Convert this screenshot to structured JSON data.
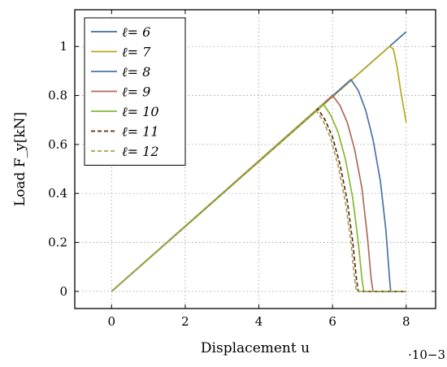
{
  "chart_data": {
    "type": "line",
    "title": "",
    "xlabel": "Displacement u",
    "ylabel": "Load F_y[kN]",
    "xlim": [
      -1,
      8.8
    ],
    "ylim": [
      -0.07,
      1.15
    ],
    "x_ticks": [
      0,
      2,
      4,
      6,
      8
    ],
    "y_ticks": [
      0,
      0.2,
      0.4,
      0.6,
      0.8,
      1
    ],
    "x_multiplier": "·10−3",
    "grid": true,
    "legend_position": "top-left",
    "series": [
      {
        "name": "ℓ= 6",
        "color": "#3b6e9a",
        "dash": "solid",
        "points": [
          [
            0,
            0
          ],
          [
            8,
            1.06
          ]
        ]
      },
      {
        "name": "ℓ= 7",
        "color": "#b9a81e",
        "dash": "solid",
        "points": [
          [
            0,
            0
          ],
          [
            7.55,
            1.0
          ],
          [
            7.65,
            0.99
          ],
          [
            7.75,
            0.92
          ],
          [
            7.85,
            0.82
          ],
          [
            8,
            0.69
          ]
        ]
      },
      {
        "name": "ℓ= 8",
        "color": "#4a72a8",
        "dash": "solid",
        "points": [
          [
            0,
            0
          ],
          [
            6.5,
            0.865
          ],
          [
            6.7,
            0.82
          ],
          [
            6.9,
            0.74
          ],
          [
            7.1,
            0.62
          ],
          [
            7.3,
            0.45
          ],
          [
            7.45,
            0.25
          ],
          [
            7.55,
            0.05
          ],
          [
            7.58,
            0.0
          ],
          [
            8,
            0.0
          ]
        ]
      },
      {
        "name": "ℓ= 9",
        "color": "#b06a5c",
        "dash": "solid",
        "points": [
          [
            0,
            0
          ],
          [
            6.0,
            0.8
          ],
          [
            6.2,
            0.76
          ],
          [
            6.4,
            0.69
          ],
          [
            6.6,
            0.58
          ],
          [
            6.8,
            0.42
          ],
          [
            6.95,
            0.22
          ],
          [
            7.05,
            0.05
          ],
          [
            7.1,
            0.0
          ],
          [
            8,
            0.0
          ]
        ]
      },
      {
        "name": "ℓ= 10",
        "color": "#86b830",
        "dash": "solid",
        "points": [
          [
            0,
            0
          ],
          [
            5.75,
            0.765
          ],
          [
            5.95,
            0.72
          ],
          [
            6.15,
            0.65
          ],
          [
            6.35,
            0.54
          ],
          [
            6.55,
            0.38
          ],
          [
            6.7,
            0.2
          ],
          [
            6.8,
            0.05
          ],
          [
            6.85,
            0.0
          ],
          [
            8,
            0.0
          ]
        ]
      },
      {
        "name": "ℓ= 11",
        "color": "#5a2a0e",
        "dash": "dashed",
        "points": [
          [
            0,
            0
          ],
          [
            5.6,
            0.745
          ],
          [
            5.8,
            0.7
          ],
          [
            6.0,
            0.63
          ],
          [
            6.2,
            0.52
          ],
          [
            6.4,
            0.37
          ],
          [
            6.55,
            0.2
          ],
          [
            6.65,
            0.05
          ],
          [
            6.7,
            0.0
          ],
          [
            8,
            0.0
          ]
        ]
      },
      {
        "name": "ℓ= 12",
        "color": "#a8a050",
        "dash": "dashed",
        "points": [
          [
            0,
            0
          ],
          [
            5.55,
            0.74
          ],
          [
            5.75,
            0.695
          ],
          [
            5.95,
            0.625
          ],
          [
            6.15,
            0.515
          ],
          [
            6.35,
            0.365
          ],
          [
            6.5,
            0.2
          ],
          [
            6.6,
            0.05
          ],
          [
            6.65,
            0.0
          ],
          [
            8,
            0.0
          ]
        ]
      }
    ]
  }
}
